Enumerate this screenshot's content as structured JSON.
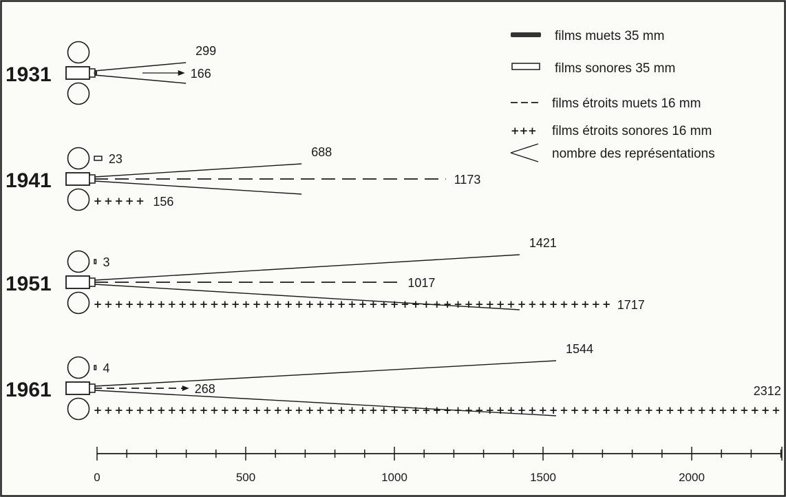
{
  "chart_data": {
    "type": "bar",
    "title": "",
    "xlabel": "",
    "ylabel": "",
    "xlim": [
      0,
      2300
    ],
    "x_ticks": [
      0,
      500,
      1000,
      1500,
      2000
    ],
    "grid": false,
    "legend_position": "top-right",
    "categories": [
      "1931",
      "1941",
      "1951",
      "1961"
    ],
    "series": [
      {
        "name": "films muets 35 mm",
        "values": [
          166,
          null,
          null,
          null
        ]
      },
      {
        "name": "films sonores 35 mm",
        "values": [
          null,
          23,
          3,
          4
        ]
      },
      {
        "name": "films étroits muets 16 mm",
        "values": [
          null,
          1173,
          1017,
          268
        ]
      },
      {
        "name": "films étroits sonores 16 mm",
        "values": [
          null,
          156,
          1717,
          2312
        ]
      },
      {
        "name": "nombre des représentations",
        "values": [
          299,
          688,
          1421,
          1544
        ]
      }
    ],
    "legend": [
      {
        "key": "muets35",
        "label": "films muets 35 mm"
      },
      {
        "key": "sonores35",
        "label": "films sonores 35 mm"
      },
      {
        "key": "muets16",
        "label": "films étroits muets 16 mm"
      },
      {
        "key": "sonores16",
        "label": "films étroits sonores 16 mm"
      },
      {
        "key": "repr",
        "label": "nombre des représentations"
      }
    ],
    "legend_symbols": {
      "sonores16": "+++"
    }
  }
}
